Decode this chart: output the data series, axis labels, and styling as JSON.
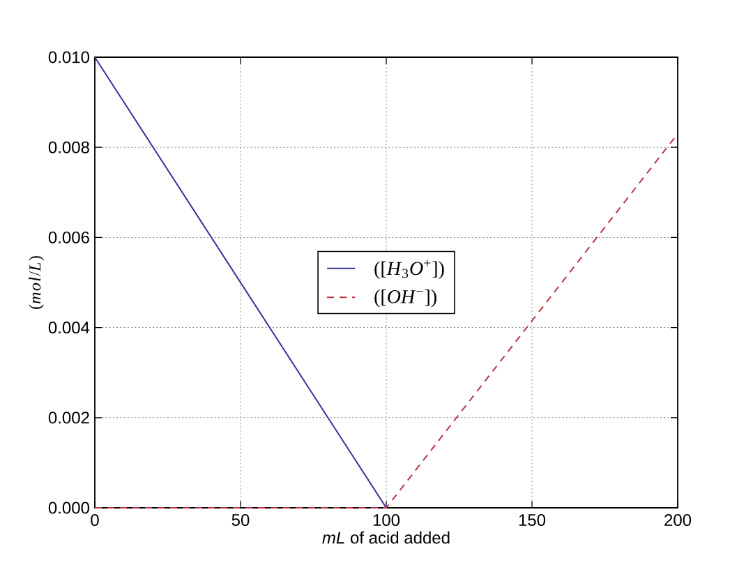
{
  "chart_data": {
    "type": "line",
    "xlabel": "*mL* of acid added",
    "ylabel": "(*mol*/*L*)",
    "xlim": [
      0,
      200
    ],
    "ylim": [
      0,
      0.01
    ],
    "xticks": [
      0,
      50,
      100,
      150,
      200
    ],
    "yticks": [
      {
        "value": 0,
        "label": "0.000"
      },
      {
        "value": 0.002,
        "label": "0.002"
      },
      {
        "value": 0.004,
        "label": "0.004"
      },
      {
        "value": 0.006,
        "label": "0.006"
      },
      {
        "value": 0.008,
        "label": "0.008"
      },
      {
        "value": 0.01,
        "label": "0.010"
      }
    ],
    "grid": true,
    "legend": "center",
    "series": [
      {
        "name": "([*H*$_{3}$*O*$^{+}$])",
        "color": "#333399",
        "line_style": "solid",
        "x": [
          0,
          100
        ],
        "values": [
          0.01,
          0
        ]
      },
      {
        "name": "([*OH*$^{−}$])",
        "color": "#bb3344",
        "line_style": "dashed",
        "x": [
          0,
          100,
          200
        ],
        "values": [
          0,
          0,
          0.0083
        ]
      }
    ]
  }
}
